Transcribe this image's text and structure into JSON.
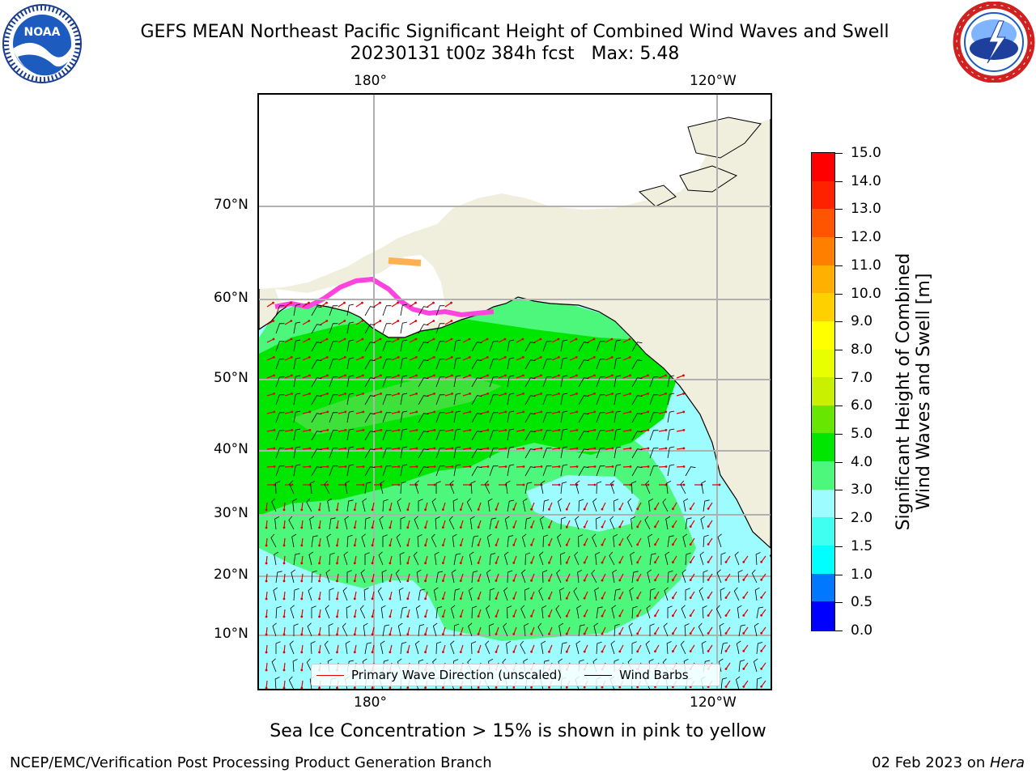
{
  "title": {
    "line1": "GEFS MEAN Northeast Pacific Significant Height of Combined Wind Waves and Swell",
    "line2": "20230131 t00z 384h fcst   Max: 5.48"
  },
  "map": {
    "lon_labels_top": [
      "180°",
      "120°W"
    ],
    "lon_labels_bottom": [
      "180°",
      "120°W"
    ],
    "lat_labels": [
      "70°N",
      "60°N",
      "50°N",
      "40°N",
      "30°N",
      "20°N",
      "10°N"
    ],
    "land_color": "#f0eedc",
    "ocean_low_color": "#9dfcff",
    "ocean_mid_color": "#4cf77c",
    "ocean_high_color": "#00e600",
    "ice_color": "#ff44dd",
    "gridline_color": "#b0b0b0"
  },
  "legend": {
    "wave_direction_label": "Primary Wave Direction (unscaled)",
    "wave_direction_color": "#e00000",
    "wind_barbs_label": "Wind Barbs",
    "wind_barbs_color": "#000000"
  },
  "colorbar": {
    "label_line1": "Significant Height of Combined",
    "label_line2": "Wind Waves and Swell [m]",
    "ticks": [
      "0.0",
      "0.5",
      "1.0",
      "1.5",
      "2.0",
      "3.0",
      "4.0",
      "5.0",
      "6.0",
      "7.0",
      "8.0",
      "9.0",
      "10.0",
      "11.0",
      "12.0",
      "13.0",
      "14.0",
      "15.0"
    ],
    "colors": [
      "#0000ff",
      "#0078ff",
      "#00ffff",
      "#40fff0",
      "#9dfcff",
      "#4cf77c",
      "#00e600",
      "#66e600",
      "#c8f000",
      "#e8ff00",
      "#ffff00",
      "#ffd000",
      "#ffb000",
      "#ff8000",
      "#ff5500",
      "#ff2200",
      "#ff0000"
    ]
  },
  "subcaption": "Sea Ice Concentration > 15% is shown in pink to yellow",
  "footer": {
    "left": "NCEP/EMC/Verification Post Processing Product Generation Branch",
    "right_date": "02 Feb 2023 on ",
    "right_machine": "Hera"
  },
  "logos": {
    "left_name": "noaa-logo",
    "left_text": "NOAA",
    "right_name": "nws-logo"
  }
}
